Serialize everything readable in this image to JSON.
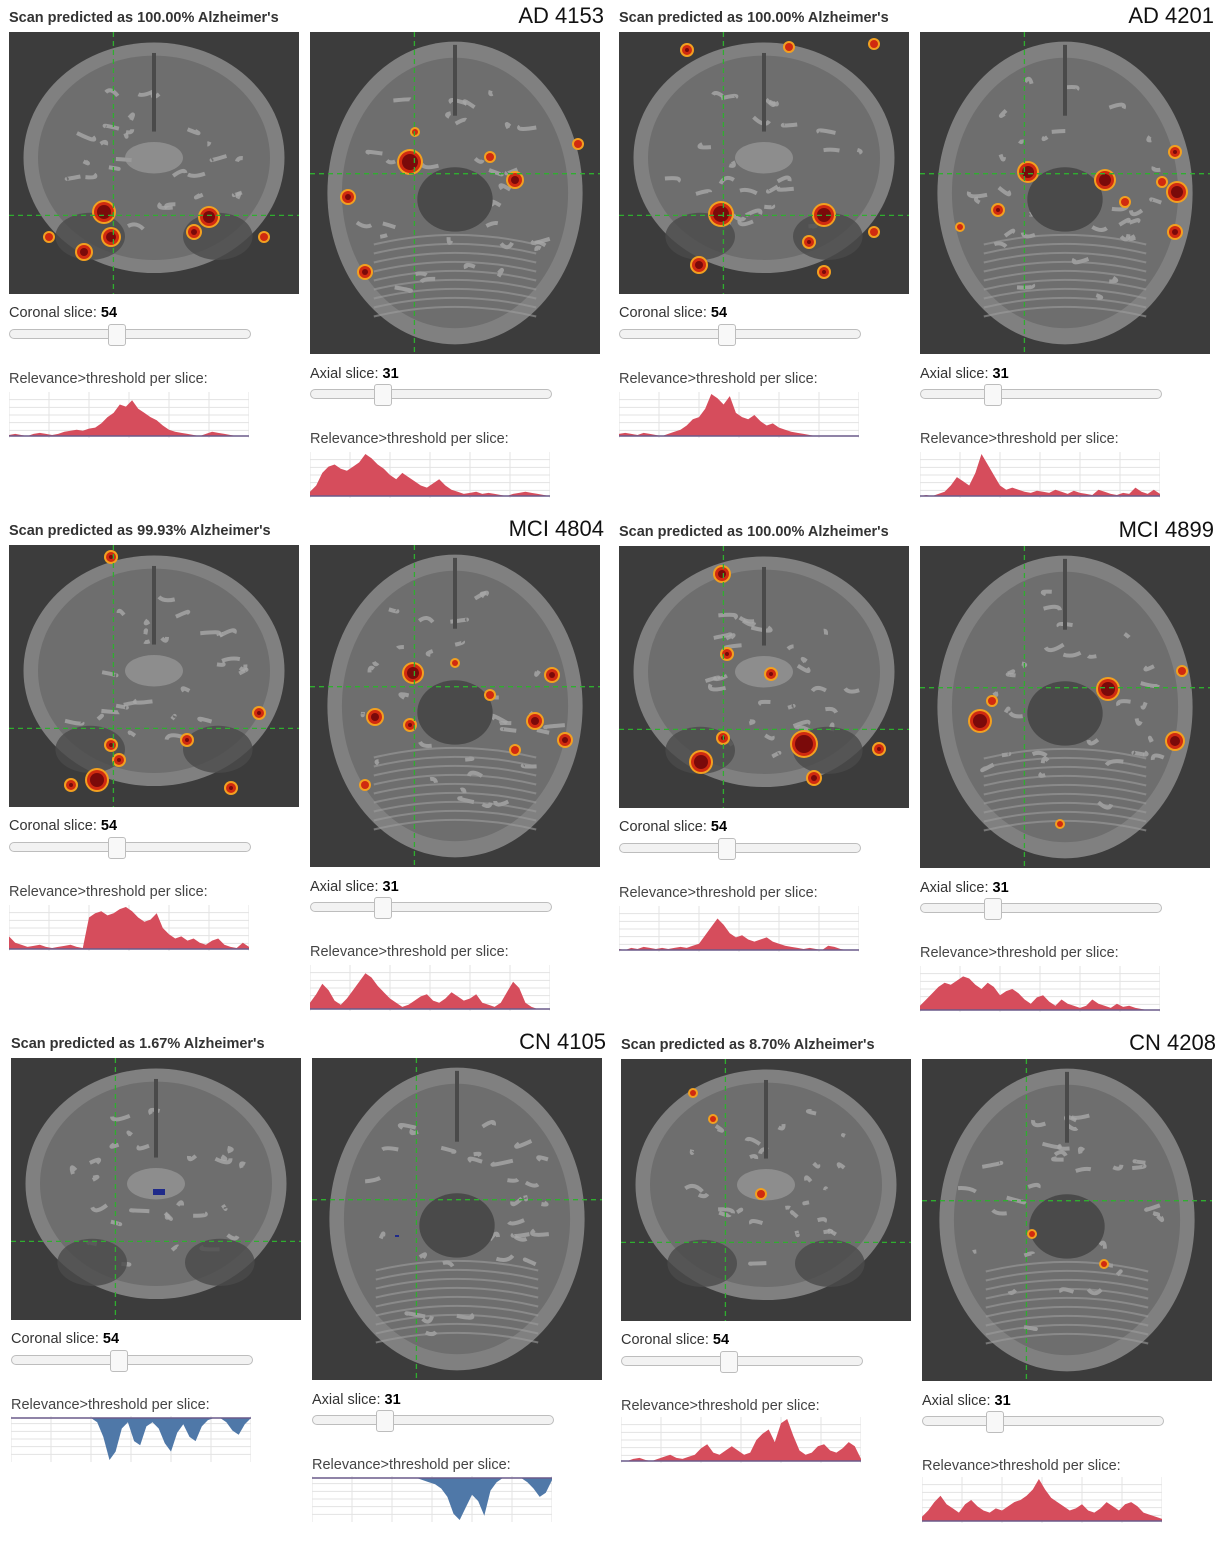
{
  "colors": {
    "background": "#ffffff",
    "scan_bg": "#3c3c3c",
    "brain": "#8c8c8c",
    "crosshair": "#2fae2f",
    "relevance_positive": "#d64d5c",
    "relevance_negative": "#4f78a8",
    "hot_core": "#7a0a0a",
    "hot_mid": "#d02a10",
    "hot_edge": "#f2a020"
  },
  "ui": {
    "coronal_label": "Coronal slice:",
    "axial_label": "Axial slice:",
    "hist_label": "Relevance>threshold per slice:",
    "coronal_value": "54",
    "axial_value": "31"
  },
  "panels": [
    {
      "prediction": "Scan predicted as 100.00% Alzheimer's",
      "subject": "AD 4153",
      "coronal_hist": {
        "sign": "positive",
        "values": [
          1,
          2,
          1,
          0,
          2,
          3,
          2,
          1,
          2,
          4,
          5,
          6,
          5,
          7,
          8,
          12,
          18,
          22,
          30,
          28,
          34,
          26,
          22,
          18,
          15,
          10,
          6,
          4,
          3,
          2,
          1,
          0,
          2,
          4,
          3,
          2,
          1,
          0,
          0,
          0
        ]
      },
      "axial_hist": {
        "sign": "positive",
        "values": [
          4,
          10,
          22,
          28,
          30,
          26,
          24,
          28,
          32,
          40,
          36,
          30,
          26,
          20,
          16,
          22,
          18,
          14,
          10,
          8,
          12,
          16,
          10,
          6,
          4,
          2,
          3,
          4,
          2,
          3,
          2,
          1,
          0,
          2,
          3,
          4,
          3,
          2,
          1,
          0
        ]
      }
    },
    {
      "prediction": "Scan predicted as 100.00% Alzheimer's",
      "subject": "AD 4201",
      "coronal_hist": {
        "sign": "positive",
        "values": [
          2,
          3,
          2,
          1,
          3,
          2,
          1,
          0,
          2,
          4,
          6,
          10,
          16,
          18,
          26,
          40,
          36,
          30,
          38,
          22,
          18,
          16,
          20,
          14,
          10,
          12,
          8,
          6,
          4,
          3,
          2,
          1,
          0,
          0,
          0,
          0,
          0,
          0,
          0,
          0
        ]
      },
      "axial_hist": {
        "sign": "positive",
        "values": [
          0,
          1,
          0,
          2,
          4,
          10,
          18,
          14,
          10,
          22,
          40,
          30,
          20,
          10,
          6,
          8,
          6,
          4,
          3,
          5,
          4,
          3,
          6,
          4,
          2,
          5,
          3,
          2,
          1,
          6,
          4,
          2,
          1,
          3,
          2,
          8,
          4,
          2,
          6,
          2
        ]
      }
    },
    {
      "prediction": "Scan predicted as 99.93% Alzheimer's",
      "subject": "MCI 4804",
      "coronal_hist": {
        "sign": "positive",
        "values": [
          12,
          6,
          4,
          2,
          3,
          4,
          2,
          1,
          2,
          3,
          4,
          2,
          1,
          30,
          34,
          36,
          32,
          34,
          38,
          40,
          36,
          30,
          26,
          28,
          34,
          20,
          14,
          10,
          12,
          8,
          10,
          6,
          4,
          8,
          10,
          4,
          2,
          1,
          6,
          2
        ]
      },
      "axial_hist": {
        "sign": "positive",
        "values": [
          6,
          14,
          24,
          18,
          8,
          4,
          10,
          18,
          26,
          34,
          30,
          22,
          16,
          10,
          6,
          2,
          4,
          8,
          12,
          14,
          8,
          6,
          10,
          16,
          12,
          8,
          10,
          14,
          6,
          4,
          2,
          6,
          16,
          26,
          20,
          6,
          2,
          0,
          0,
          0
        ]
      }
    },
    {
      "prediction": "Scan predicted as 100.00% Alzheimer's",
      "subject": "MCI 4899",
      "coronal_hist": {
        "sign": "positive",
        "values": [
          1,
          0,
          2,
          1,
          3,
          2,
          1,
          2,
          1,
          2,
          3,
          2,
          4,
          6,
          14,
          22,
          30,
          24,
          16,
          12,
          14,
          10,
          8,
          10,
          12,
          8,
          6,
          4,
          3,
          2,
          1,
          2,
          1,
          0,
          4,
          3,
          1,
          0,
          0,
          0
        ]
      },
      "axial_hist": {
        "sign": "positive",
        "values": [
          4,
          10,
          16,
          22,
          26,
          24,
          28,
          32,
          30,
          24,
          20,
          26,
          22,
          14,
          18,
          20,
          16,
          10,
          6,
          12,
          14,
          8,
          4,
          10,
          6,
          4,
          2,
          4,
          10,
          6,
          4,
          2,
          6,
          3,
          4,
          2,
          1,
          0,
          0,
          0
        ]
      }
    },
    {
      "prediction": "Scan predicted as 1.67% Alzheimer's",
      "subject": "CN 4105",
      "coronal_hist": {
        "sign": "negative",
        "values": [
          0,
          0,
          0,
          0,
          0,
          0,
          0,
          0,
          0,
          0,
          0,
          0,
          0,
          0,
          4,
          18,
          40,
          32,
          10,
          4,
          22,
          26,
          8,
          4,
          10,
          24,
          32,
          14,
          6,
          18,
          22,
          8,
          2,
          0,
          0,
          4,
          12,
          16,
          6,
          0
        ]
      },
      "axial_hist": {
        "sign": "negative",
        "values": [
          0,
          0,
          0,
          0,
          0,
          0,
          0,
          0,
          0,
          0,
          0,
          0,
          0,
          0,
          0,
          0,
          0,
          0,
          2,
          4,
          6,
          10,
          18,
          34,
          40,
          28,
          16,
          22,
          36,
          12,
          4,
          0,
          0,
          0,
          0,
          4,
          10,
          18,
          14,
          2
        ]
      }
    },
    {
      "prediction": "Scan predicted as 8.70% Alzheimer's",
      "subject": "CN 4208",
      "coronal_hist": {
        "sign": "positive",
        "values": [
          0,
          0,
          2,
          3,
          1,
          0,
          2,
          4,
          6,
          3,
          2,
          4,
          6,
          12,
          16,
          8,
          6,
          10,
          14,
          10,
          6,
          8,
          20,
          26,
          30,
          18,
          36,
          40,
          24,
          10,
          6,
          8,
          14,
          16,
          10,
          8,
          12,
          18,
          14,
          2
        ]
      },
      "axial_hist": {
        "sign": "positive",
        "values": [
          4,
          10,
          18,
          24,
          16,
          12,
          8,
          16,
          20,
          14,
          10,
          8,
          12,
          10,
          14,
          18,
          20,
          24,
          30,
          40,
          30,
          22,
          18,
          14,
          10,
          12,
          16,
          10,
          8,
          12,
          18,
          14,
          10,
          16,
          18,
          14,
          8,
          6,
          4,
          2
        ]
      }
    }
  ]
}
